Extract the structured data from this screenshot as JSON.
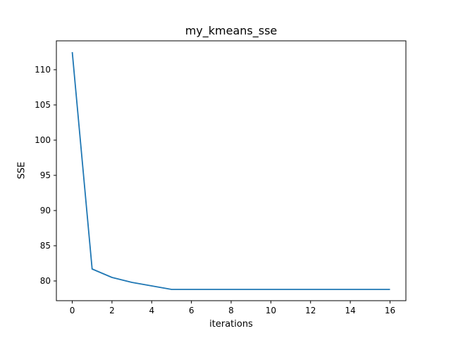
{
  "chart_data": {
    "type": "line",
    "title": "my_kmeans_sse",
    "xlabel": "iterations",
    "ylabel": "SSE",
    "xlim": [
      -0.8,
      16.8
    ],
    "ylim": [
      77.2,
      114.1
    ],
    "xticks": [
      0,
      2,
      4,
      6,
      8,
      10,
      12,
      14,
      16
    ],
    "yticks": [
      80,
      85,
      90,
      95,
      100,
      105,
      110
    ],
    "grid": false,
    "series": [
      {
        "color": "#1f77b4",
        "x": [
          0,
          1,
          2,
          3,
          4,
          5,
          6,
          7,
          8,
          9,
          10,
          11,
          12,
          13,
          14,
          15,
          16
        ],
        "y": [
          112.5,
          81.7,
          80.5,
          79.8,
          79.3,
          78.8,
          78.8,
          78.8,
          78.8,
          78.8,
          78.8,
          78.8,
          78.8,
          78.8,
          78.8,
          78.8,
          78.8
        ]
      }
    ]
  }
}
